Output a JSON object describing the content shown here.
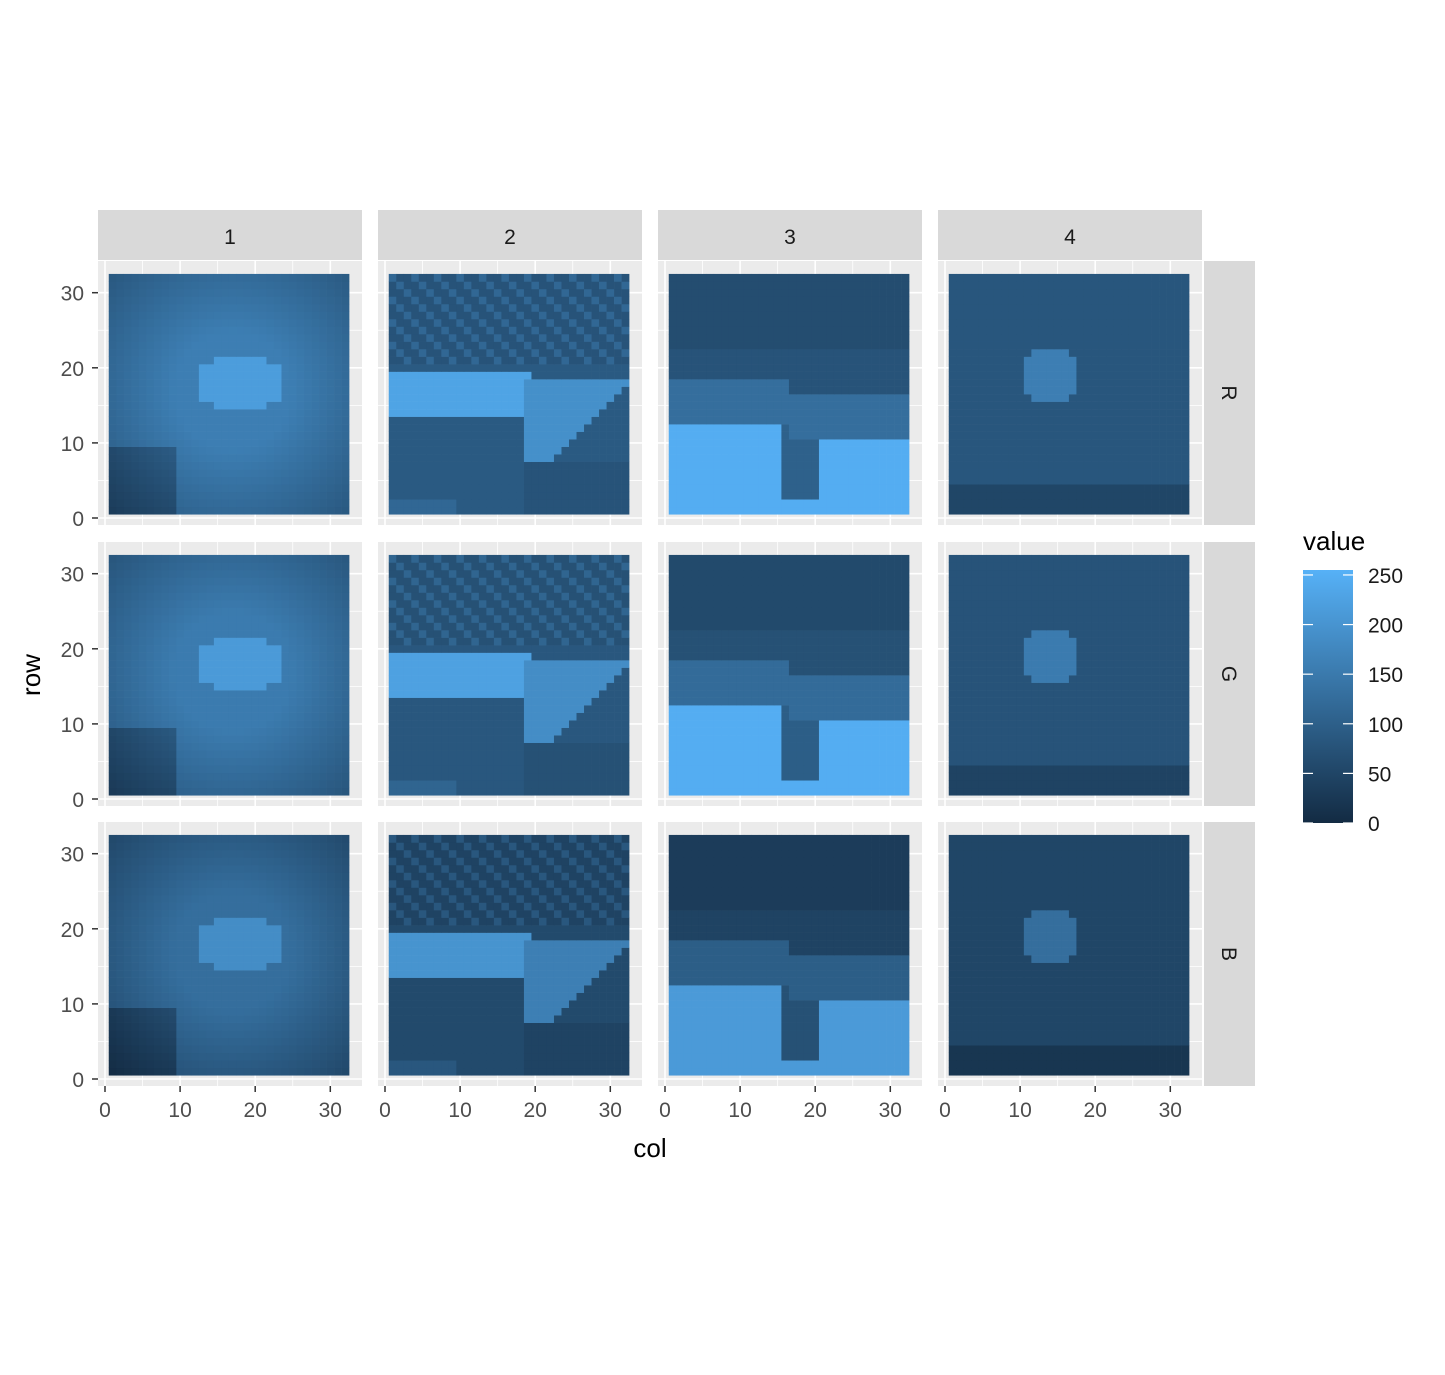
{
  "chart_data": {
    "type": "heatmap",
    "title": "",
    "xlabel": "col",
    "ylabel": "row",
    "facet_columns": [
      "1",
      "2",
      "3",
      "4"
    ],
    "facet_rows": [
      "R",
      "G",
      "B"
    ],
    "xlim": [
      0,
      32
    ],
    "ylim": [
      0,
      32
    ],
    "x_ticks": [
      0,
      10,
      20,
      30
    ],
    "y_ticks": [
      0,
      10,
      20,
      30
    ],
    "grid": true,
    "legend": {
      "title": "value",
      "position": "right",
      "range": [
        0,
        255
      ],
      "ticks": [
        0,
        50,
        100,
        150,
        200,
        250
      ],
      "low_color": "#132B43",
      "high_color": "#56B1F7"
    },
    "panel_background": "#EBEBEB",
    "strip_background": "#D9D9D9",
    "image_size": [
      32,
      32
    ],
    "images_description_note": null
  }
}
